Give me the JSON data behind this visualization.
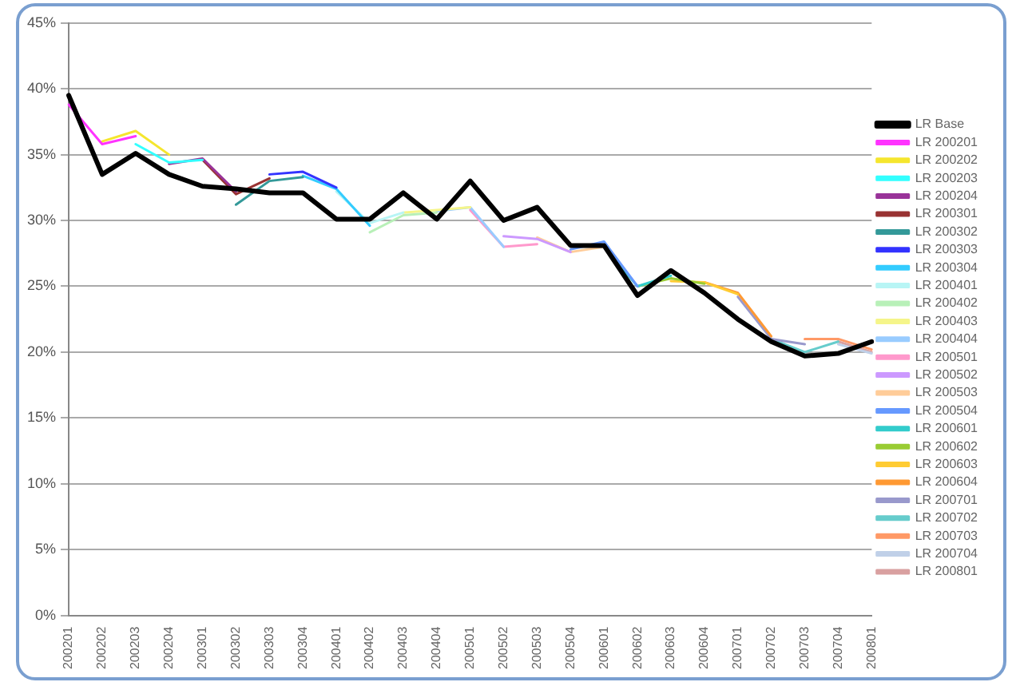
{
  "chart_data": {
    "type": "line",
    "categories": [
      "200201",
      "200202",
      "200203",
      "200204",
      "200301",
      "200302",
      "200303",
      "200304",
      "200401",
      "200402",
      "200403",
      "200404",
      "200501",
      "200502",
      "200503",
      "200504",
      "200601",
      "200602",
      "200603",
      "200604",
      "200701",
      "200702",
      "200703",
      "200704",
      "200801"
    ],
    "ylim": [
      0,
      45
    ],
    "yticks": [
      {
        "value": 0,
        "label": "0%"
      },
      {
        "value": 5,
        "label": "5%"
      },
      {
        "value": 10,
        "label": "10%"
      },
      {
        "value": 15,
        "label": "15%"
      },
      {
        "value": 20,
        "label": "20%"
      },
      {
        "value": 25,
        "label": "25%"
      },
      {
        "value": 30,
        "label": "30%"
      },
      {
        "value": 35,
        "label": "35%"
      },
      {
        "value": 40,
        "label": "40%"
      },
      {
        "value": 45,
        "label": "45%"
      }
    ],
    "grid": "y",
    "legend": "right",
    "marker": "none",
    "line_style": "solid",
    "series": [
      {
        "name": "LR Base",
        "color": "#000000",
        "values": [
          39.5,
          33.5,
          35.1,
          33.5,
          32.6,
          32.4,
          32.1,
          32.1,
          30.1,
          30.1,
          32.1,
          30.1,
          33.0,
          30.0,
          31.0,
          28.1,
          28.1,
          24.3,
          26.2,
          24.5,
          22.5,
          20.8,
          19.7,
          19.9,
          20.8
        ]
      },
      {
        "name": "LR 200201",
        "color": "#ff33ff",
        "values": [
          38.8,
          35.8,
          36.4,
          null,
          null,
          null,
          null,
          null,
          null,
          null,
          null,
          null,
          null,
          null,
          null,
          null,
          null,
          null,
          null,
          null,
          null,
          null,
          null,
          null,
          null
        ]
      },
      {
        "name": "LR 200202",
        "color": "#f5e62e",
        "values": [
          null,
          36.0,
          36.8,
          35.0,
          null,
          null,
          null,
          null,
          null,
          null,
          null,
          null,
          null,
          null,
          null,
          null,
          null,
          null,
          null,
          null,
          null,
          null,
          null,
          null,
          null
        ]
      },
      {
        "name": "LR 200203",
        "color": "#33ffff",
        "values": [
          null,
          null,
          35.8,
          34.4,
          34.6,
          null,
          null,
          null,
          null,
          null,
          null,
          null,
          null,
          null,
          null,
          null,
          null,
          null,
          null,
          null,
          null,
          null,
          null,
          null,
          null
        ]
      },
      {
        "name": "LR 200204",
        "color": "#993399",
        "values": [
          null,
          null,
          null,
          34.3,
          34.7,
          32.2,
          null,
          null,
          null,
          null,
          null,
          null,
          null,
          null,
          null,
          null,
          null,
          null,
          null,
          null,
          null,
          null,
          null,
          null,
          null
        ]
      },
      {
        "name": "LR 200301",
        "color": "#993333",
        "values": [
          null,
          null,
          null,
          null,
          34.6,
          32.0,
          33.2,
          null,
          null,
          null,
          null,
          null,
          null,
          null,
          null,
          null,
          null,
          null,
          null,
          null,
          null,
          null,
          null,
          null,
          null
        ]
      },
      {
        "name": "LR 200302",
        "color": "#339999",
        "values": [
          null,
          null,
          null,
          null,
          null,
          31.2,
          33.0,
          33.3,
          null,
          null,
          null,
          null,
          null,
          null,
          null,
          null,
          null,
          null,
          null,
          null,
          null,
          null,
          null,
          null,
          null
        ]
      },
      {
        "name": "LR 200303",
        "color": "#3333ff",
        "values": [
          null,
          null,
          null,
          null,
          null,
          null,
          33.5,
          33.7,
          32.5,
          null,
          null,
          null,
          null,
          null,
          null,
          null,
          null,
          null,
          null,
          null,
          null,
          null,
          null,
          null,
          null
        ]
      },
      {
        "name": "LR 200304",
        "color": "#33ccff",
        "values": [
          null,
          null,
          null,
          null,
          null,
          null,
          null,
          33.4,
          32.4,
          29.6,
          null,
          null,
          null,
          null,
          null,
          null,
          null,
          null,
          null,
          null,
          null,
          null,
          null,
          null,
          null
        ]
      },
      {
        "name": "LR 200401",
        "color": "#b8f5f5",
        "values": [
          null,
          null,
          null,
          null,
          null,
          null,
          null,
          null,
          32.2,
          29.8,
          30.6,
          null,
          null,
          null,
          null,
          null,
          null,
          null,
          null,
          null,
          null,
          null,
          null,
          null,
          null
        ]
      },
      {
        "name": "LR 200402",
        "color": "#b8f0b8",
        "values": [
          null,
          null,
          null,
          null,
          null,
          null,
          null,
          null,
          null,
          29.1,
          30.4,
          30.6,
          null,
          null,
          null,
          null,
          null,
          null,
          null,
          null,
          null,
          null,
          null,
          null,
          null
        ]
      },
      {
        "name": "LR 200403",
        "color": "#f5f58a",
        "values": [
          null,
          null,
          null,
          null,
          null,
          null,
          null,
          null,
          null,
          null,
          30.6,
          30.8,
          31.0,
          null,
          null,
          null,
          null,
          null,
          null,
          null,
          null,
          null,
          null,
          null,
          null
        ]
      },
      {
        "name": "LR 200404",
        "color": "#99ccff",
        "values": [
          null,
          null,
          null,
          null,
          null,
          null,
          null,
          null,
          null,
          null,
          null,
          30.7,
          31.0,
          28.0,
          null,
          null,
          null,
          null,
          null,
          null,
          null,
          null,
          null,
          null,
          null
        ]
      },
      {
        "name": "LR 200501",
        "color": "#ff99cc",
        "values": [
          null,
          null,
          null,
          null,
          null,
          null,
          null,
          null,
          null,
          null,
          null,
          null,
          30.8,
          28.0,
          28.2,
          null,
          null,
          null,
          null,
          null,
          null,
          null,
          null,
          null,
          null
        ]
      },
      {
        "name": "LR 200502",
        "color": "#cc99ff",
        "values": [
          null,
          null,
          null,
          null,
          null,
          null,
          null,
          null,
          null,
          null,
          null,
          null,
          null,
          28.8,
          28.6,
          27.6,
          null,
          null,
          null,
          null,
          null,
          null,
          null,
          null,
          null
        ]
      },
      {
        "name": "LR 200503",
        "color": "#ffcc99",
        "values": [
          null,
          null,
          null,
          null,
          null,
          null,
          null,
          null,
          null,
          null,
          null,
          null,
          null,
          null,
          28.7,
          27.6,
          28.0,
          null,
          null,
          null,
          null,
          null,
          null,
          null,
          null
        ]
      },
      {
        "name": "LR 200504",
        "color": "#6699ff",
        "values": [
          null,
          null,
          null,
          null,
          null,
          null,
          null,
          null,
          null,
          null,
          null,
          null,
          null,
          null,
          null,
          27.8,
          28.4,
          25.0,
          null,
          null,
          null,
          null,
          null,
          null,
          null
        ]
      },
      {
        "name": "LR 200601",
        "color": "#33cccc",
        "values": [
          null,
          null,
          null,
          null,
          null,
          null,
          null,
          null,
          null,
          null,
          null,
          null,
          null,
          null,
          null,
          null,
          28.0,
          25.0,
          25.8,
          null,
          null,
          null,
          null,
          null,
          null
        ]
      },
      {
        "name": "LR 200602",
        "color": "#99cc33",
        "values": [
          null,
          null,
          null,
          null,
          null,
          null,
          null,
          null,
          null,
          null,
          null,
          null,
          null,
          null,
          null,
          null,
          null,
          25.0,
          25.6,
          25.2,
          null,
          null,
          null,
          null,
          null
        ]
      },
      {
        "name": "LR 200603",
        "color": "#ffcc33",
        "values": [
          null,
          null,
          null,
          null,
          null,
          null,
          null,
          null,
          null,
          null,
          null,
          null,
          null,
          null,
          null,
          null,
          null,
          null,
          25.4,
          25.3,
          24.4,
          null,
          null,
          null,
          null
        ]
      },
      {
        "name": "LR 200604",
        "color": "#ff9933",
        "values": [
          null,
          null,
          null,
          null,
          null,
          null,
          null,
          null,
          null,
          null,
          null,
          null,
          null,
          null,
          null,
          null,
          null,
          null,
          null,
          25.3,
          24.5,
          21.2,
          null,
          null,
          null
        ]
      },
      {
        "name": "LR 200701",
        "color": "#9999cc",
        "values": [
          null,
          null,
          null,
          null,
          null,
          null,
          null,
          null,
          null,
          null,
          null,
          null,
          null,
          null,
          null,
          null,
          null,
          null,
          null,
          null,
          24.2,
          21.0,
          20.6,
          null,
          null
        ]
      },
      {
        "name": "LR 200702",
        "color": "#66cccc",
        "values": [
          null,
          null,
          null,
          null,
          null,
          null,
          null,
          null,
          null,
          null,
          null,
          null,
          null,
          null,
          null,
          null,
          null,
          null,
          null,
          null,
          null,
          21.0,
          20.0,
          20.8,
          null
        ]
      },
      {
        "name": "LR 200703",
        "color": "#ff9966",
        "values": [
          null,
          null,
          null,
          null,
          null,
          null,
          null,
          null,
          null,
          null,
          null,
          null,
          null,
          null,
          null,
          null,
          null,
          null,
          null,
          null,
          null,
          null,
          21.0,
          21.0,
          20.2
        ]
      },
      {
        "name": "LR 200704",
        "color": "#c0d0e8",
        "values": [
          null,
          null,
          null,
          null,
          null,
          null,
          null,
          null,
          null,
          null,
          null,
          null,
          null,
          null,
          null,
          null,
          null,
          null,
          null,
          null,
          null,
          null,
          null,
          20.6,
          19.9
        ]
      },
      {
        "name": "LR 200801",
        "color": "#d9a0a0",
        "values": [
          null,
          null,
          null,
          null,
          null,
          null,
          null,
          null,
          null,
          null,
          null,
          null,
          null,
          null,
          null,
          null,
          null,
          null,
          null,
          null,
          null,
          null,
          null,
          20.8,
          20.0
        ]
      }
    ]
  }
}
